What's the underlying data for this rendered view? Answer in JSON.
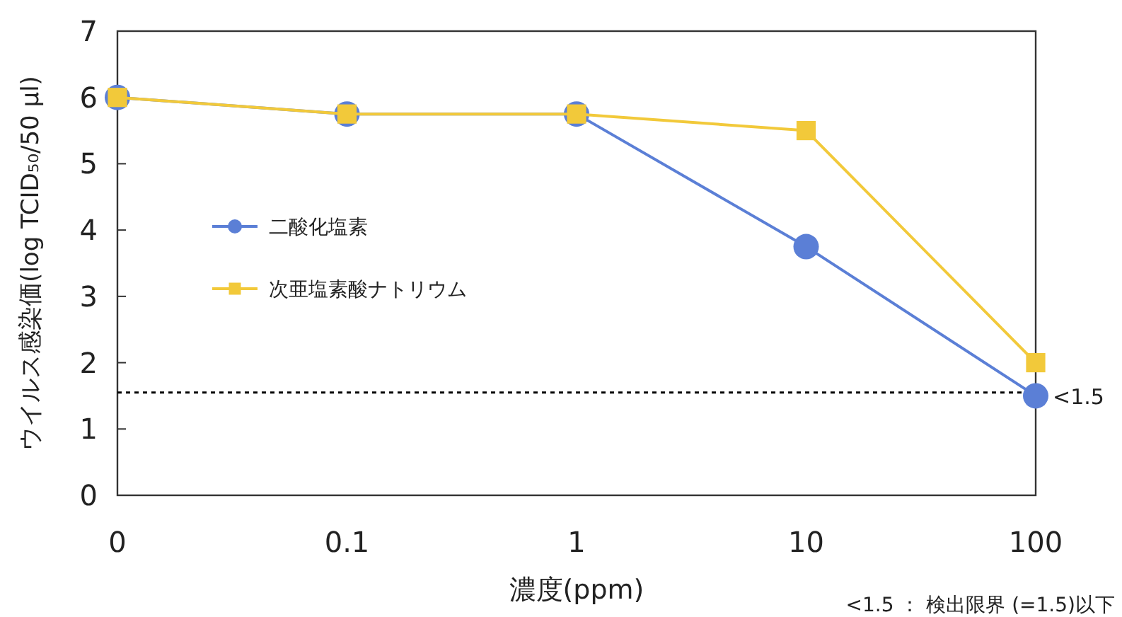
{
  "chart_data": {
    "type": "line",
    "xlabel": "濃度(ppm)",
    "ylabel": "ウイルス感染価(log TCID₅₀/50 μl)",
    "categories": [
      "0",
      "0.1",
      "1",
      "10",
      "100"
    ],
    "series": [
      {
        "name": "二酸化塩素",
        "color": "#5b7fd6",
        "marker": "circle",
        "values": [
          6,
          5.75,
          5.75,
          3.75,
          1.5
        ]
      },
      {
        "name": "次亜塩素酸ナトリウム",
        "color": "#f2c93a",
        "marker": "square",
        "values": [
          6,
          5.75,
          5.75,
          5.5,
          2.0
        ]
      }
    ],
    "ylim": [
      0,
      7
    ],
    "yticks": [
      0,
      1,
      2,
      3,
      4,
      5,
      6,
      7
    ],
    "grid": false,
    "legend": "left",
    "line_style": "solid",
    "ref_lines": [
      {
        "axis": "y",
        "value": 1.55,
        "line_style": "dotted",
        "color": "#000000"
      }
    ],
    "annotations": [
      {
        "text": "<1.5",
        "x": "100",
        "y": 1.5
      },
      "<1.5 ： 検出限界 (=1.5)以下"
    ]
  }
}
